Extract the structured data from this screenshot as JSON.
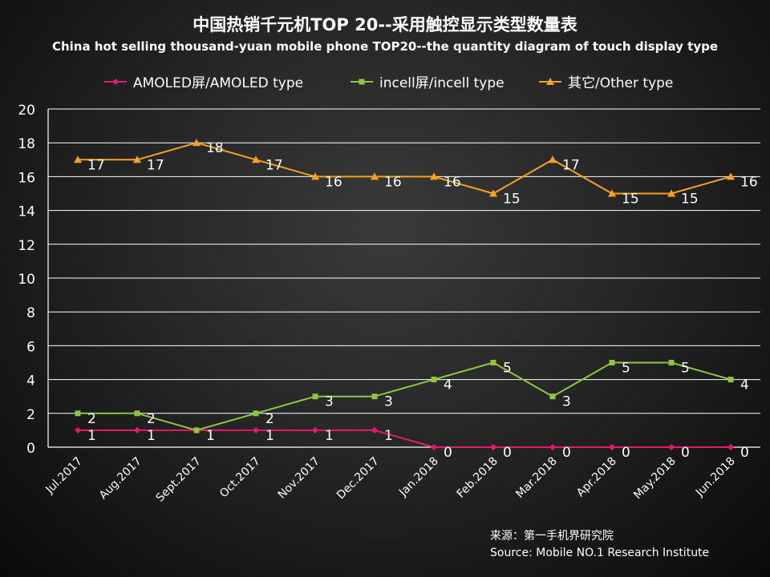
{
  "chart_data": {
    "type": "line",
    "title": "中国热销千元机TOP 20--采用触控显示类型数量表",
    "subtitle": "China hot selling thousand-yuan mobile phone TOP20--the quantity diagram of touch display type",
    "categories": [
      "Jul.2017",
      "Aug.2017",
      "Sept.2017",
      "Oct.2017",
      "Nov.2017",
      "Dec.2017",
      "Jan.2018",
      "Feb.2018",
      "Mar.2018",
      "Apr.2018",
      "May.2018",
      "Jun.2018"
    ],
    "series": [
      {
        "name": "AMOLED屏/AMOLED type",
        "color": "#e6196e",
        "marker": "diamond",
        "values": [
          1,
          1,
          1,
          1,
          1,
          1,
          0,
          0,
          0,
          0,
          0,
          0
        ]
      },
      {
        "name": "incell屏/incell type",
        "color": "#8dc63f",
        "marker": "square",
        "values": [
          2,
          2,
          1,
          2,
          3,
          3,
          4,
          5,
          3,
          5,
          5,
          4
        ]
      },
      {
        "name": "其它/Other type",
        "color": "#f7a21b",
        "marker": "triangle",
        "values": [
          17,
          17,
          18,
          17,
          16,
          16,
          16,
          15,
          17,
          15,
          15,
          16
        ]
      }
    ],
    "ylim": [
      0,
      20
    ],
    "yticks": [
      "0",
      "2",
      "4",
      "6",
      "8",
      "10",
      "12",
      "14",
      "16",
      "18",
      "20"
    ],
    "grid": true,
    "legend": "top",
    "source_cn": "来源：第一手机界研究院",
    "source_en": "Source: Mobile NO.1 Research Institute"
  }
}
